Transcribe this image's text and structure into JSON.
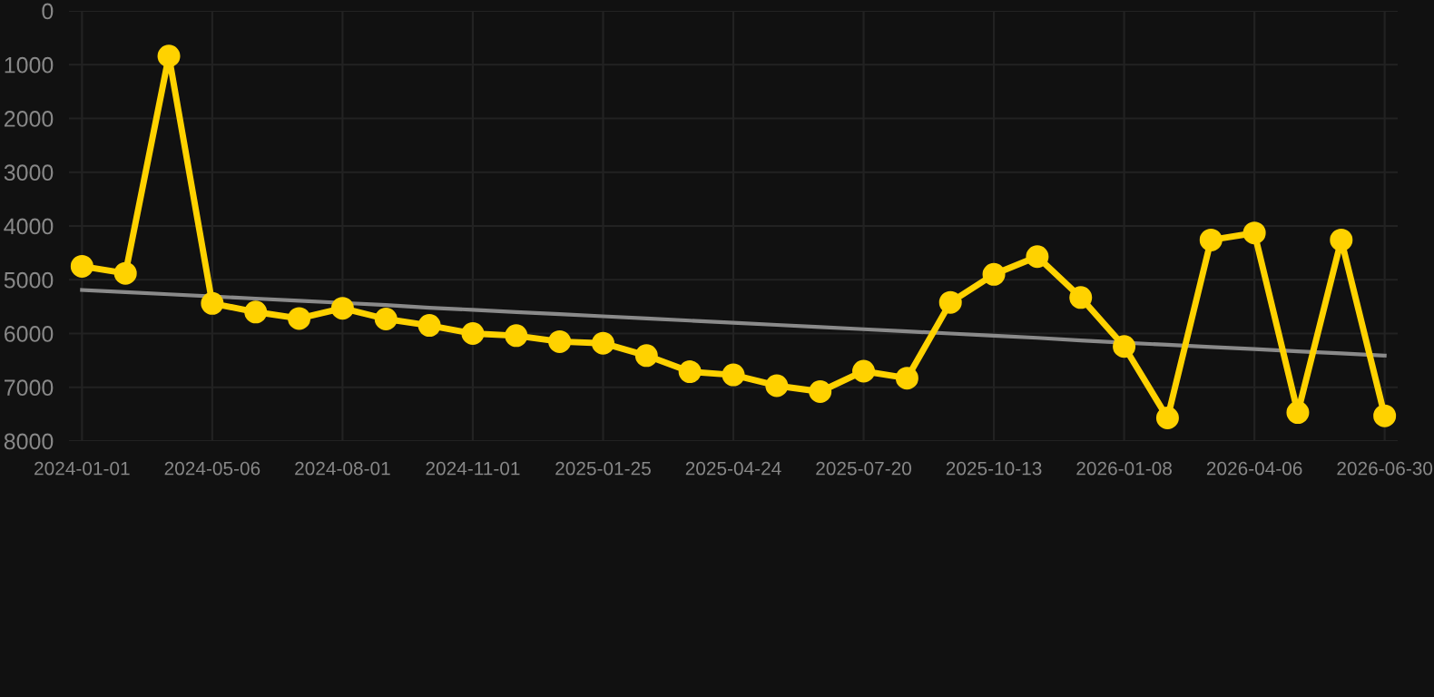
{
  "chart_data": {
    "type": "line",
    "categories": [
      "2024-01-01",
      null,
      null,
      "2024-05-06",
      null,
      null,
      "2024-08-01",
      null,
      null,
      "2024-11-01",
      null,
      null,
      "2025-01-25",
      null,
      null,
      "2025-04-24",
      null,
      null,
      "2025-07-20",
      null,
      null,
      "2025-10-13",
      null,
      null,
      "2026-01-08",
      null,
      null,
      "2026-04-06",
      null,
      null,
      "2026-06-30"
    ],
    "series": [
      {
        "color": "#ffd200",
        "marker": "circle",
        "values": [
          4750,
          4880,
          840,
          5440,
          5600,
          5720,
          5530,
          5730,
          5850,
          6000,
          6040,
          6150,
          6180,
          6410,
          6710,
          6770,
          6970,
          7080,
          6700,
          6830,
          5420,
          4900,
          4570,
          5330,
          6240,
          7570,
          4260,
          4130,
          7470,
          4260,
          7530
        ]
      },
      {
        "type": "line",
        "color": "#8a8a8a",
        "marker": "none",
        "values": [
          5190,
          5230,
          5270,
          5310,
          5350,
          5390,
          5430,
          5470,
          5520,
          5560,
          5600,
          5640,
          5680,
          5720,
          5760,
          5800,
          5840,
          5880,
          5920,
          5960,
          6000,
          6040,
          6080,
          6130,
          6170,
          6210,
          6250,
          6290,
          6330,
          6370,
          6410
        ]
      }
    ],
    "ylim": [
      8000,
      0
    ],
    "yticks": [
      0,
      1000,
      2000,
      3000,
      4000,
      5000,
      6000,
      7000,
      8000
    ],
    "grid": true,
    "legend": false
  }
}
